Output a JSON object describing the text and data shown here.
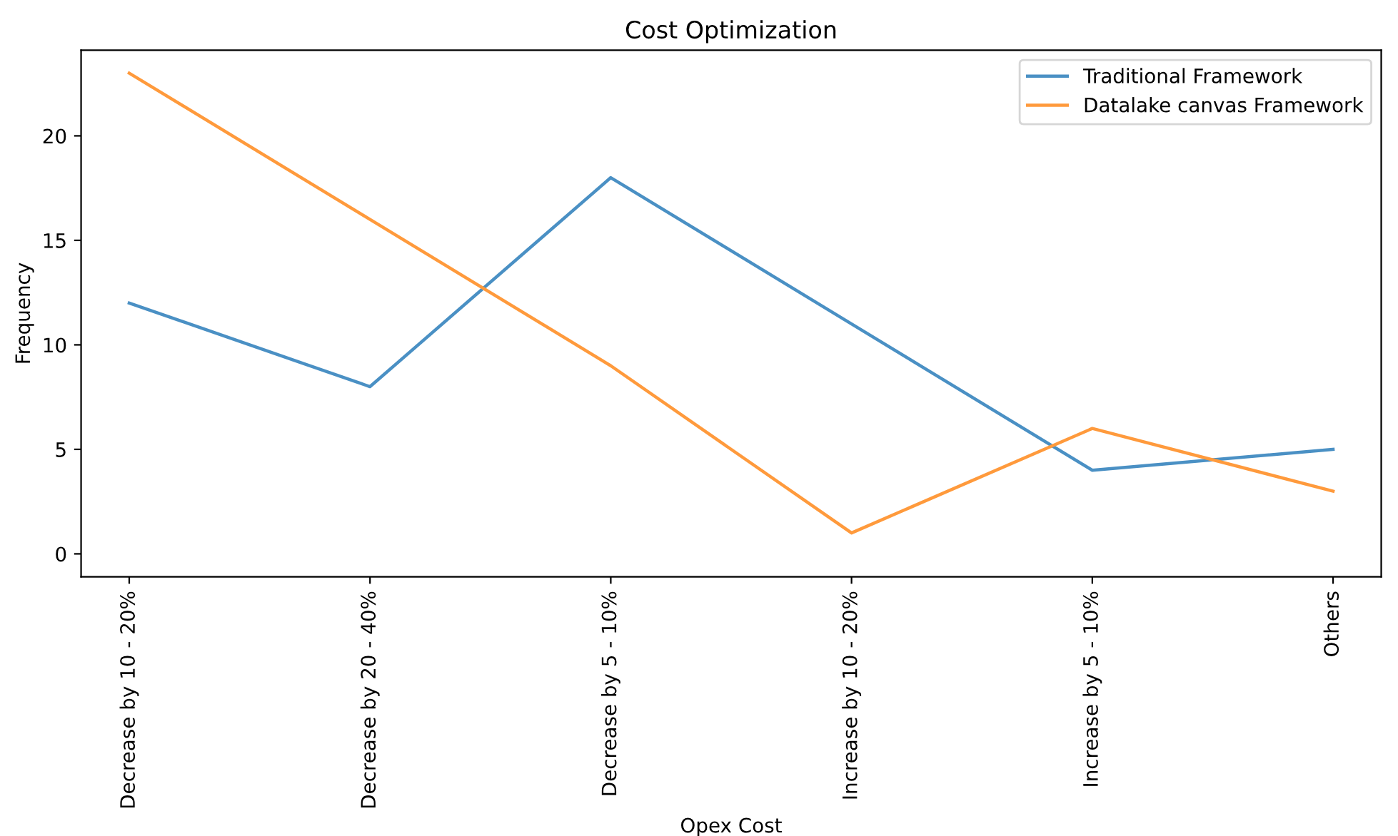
{
  "chart_data": {
    "type": "line",
    "title": "Cost Optimization",
    "xlabel": "Opex Cost",
    "ylabel": "Frequency",
    "categories": [
      "Decrease by 10 - 20%",
      "Decrease by 20 - 40%",
      "Decrease by 5 - 10%",
      "Increase by 10 - 20%",
      "Increase by 5 - 10%",
      "Others"
    ],
    "series": [
      {
        "name": "Traditional Framework",
        "color": "#4a90c4",
        "values": [
          12,
          8,
          18,
          11,
          4,
          5
        ]
      },
      {
        "name": "Datalake canvas Framework",
        "color": "#ff9a3c",
        "values": [
          23,
          16,
          9,
          1,
          6,
          3
        ]
      }
    ],
    "ylim": [
      -1.1,
      24.1
    ],
    "yticks": [
      0,
      5,
      10,
      15,
      20
    ],
    "legend": "top right",
    "grid": false,
    "marker": "none",
    "line_style": "solid"
  }
}
